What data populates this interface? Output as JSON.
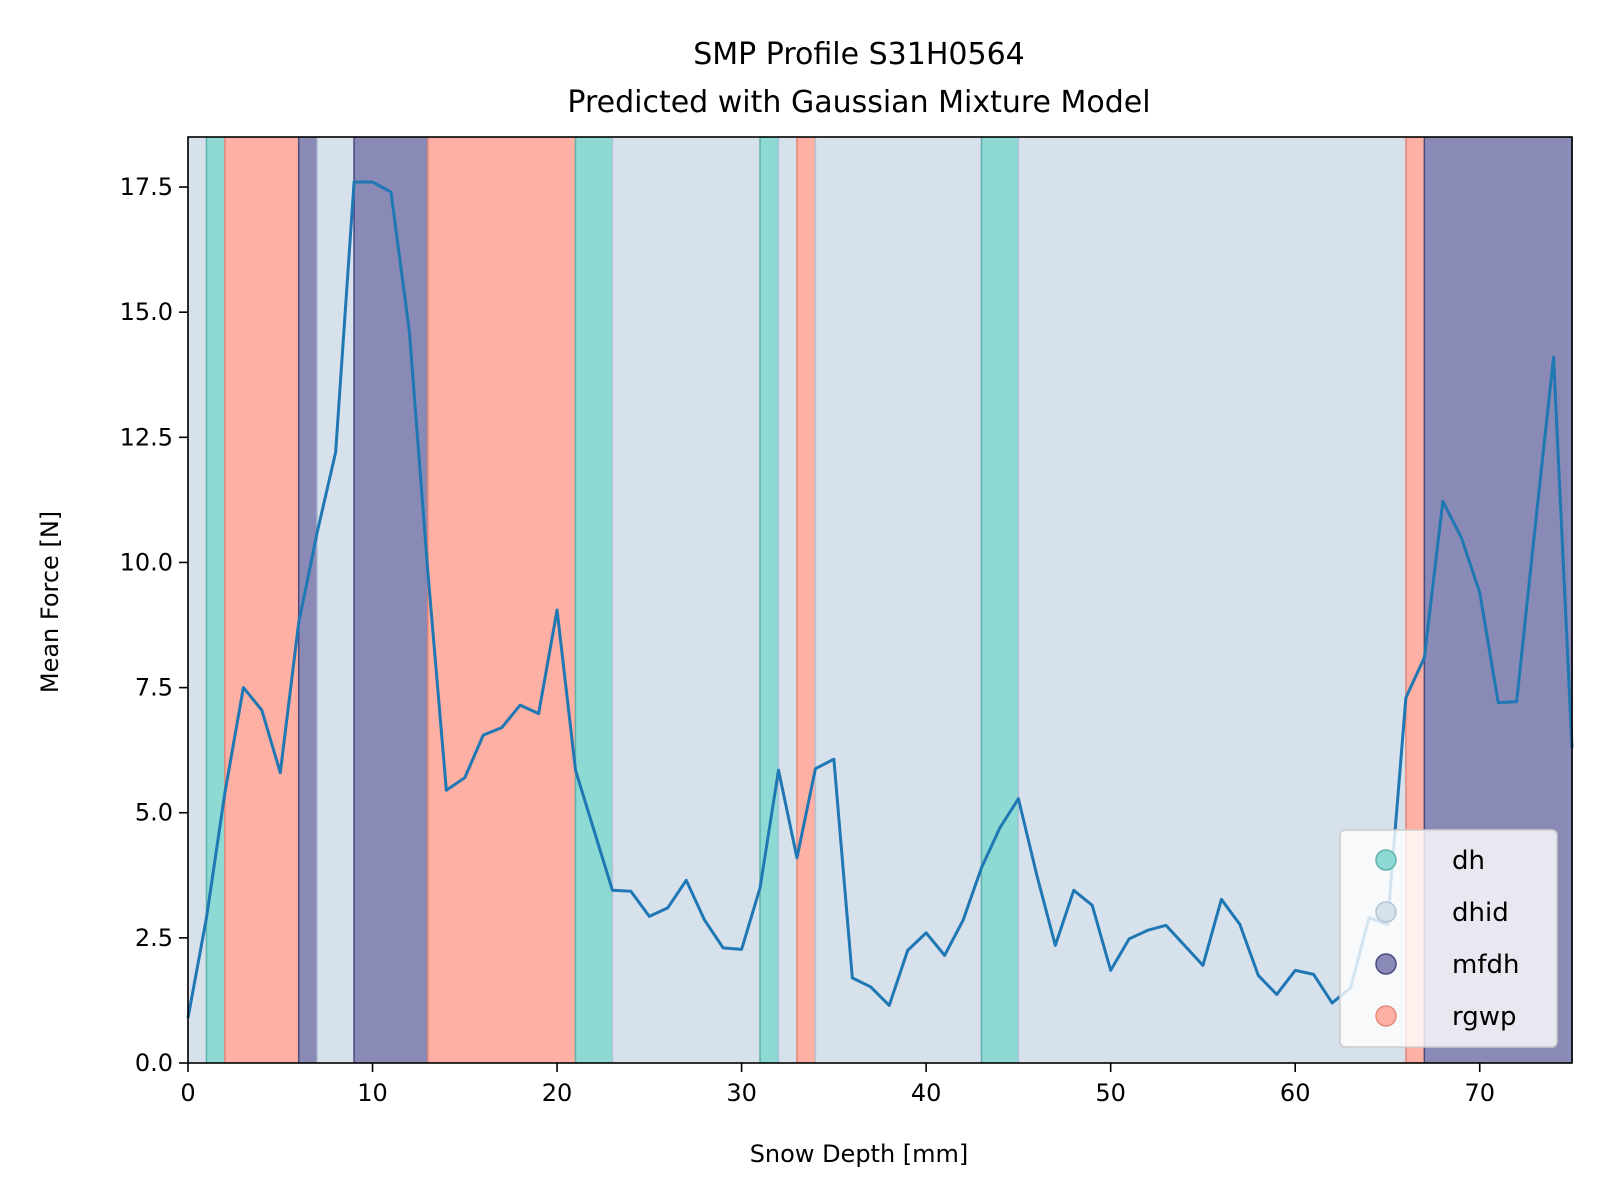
{
  "chart_data": {
    "type": "line",
    "title": "SMP Profile S31H0564",
    "subtitle": "Predicted with Gaussian Mixture Model",
    "xlabel": "Snow Depth [mm]",
    "ylabel": "Mean Force [N]",
    "xlim": [
      0,
      75
    ],
    "ylim": [
      0,
      18.5
    ],
    "xticks": [
      "0",
      "10",
      "20",
      "30",
      "40",
      "50",
      "60",
      "70"
    ],
    "yticks": [
      "0.0",
      "2.5",
      "5.0",
      "7.5",
      "10.0",
      "12.5",
      "15.0",
      "17.5"
    ],
    "grid": false,
    "legend_position": "bottom-right",
    "classes": [
      {
        "name": "dh",
        "color": "#8dd9d3",
        "edge": "#5fb3ad"
      },
      {
        "name": "dhid",
        "color": "#d7e1ec",
        "edge": "#b4c4d8"
      },
      {
        "name": "mfdh",
        "color": "#8a8ab6",
        "edge": "#4a4a80"
      },
      {
        "name": "rgwp",
        "color": "#fdb0a3",
        "edge": "#e88a7c"
      }
    ],
    "segments": [
      {
        "class": "dhid",
        "x0": 0,
        "x1": 1
      },
      {
        "class": "dh",
        "x0": 1,
        "x1": 2
      },
      {
        "class": "rgwp",
        "x0": 2,
        "x1": 6
      },
      {
        "class": "mfdh",
        "x0": 6,
        "x1": 7
      },
      {
        "class": "dhid",
        "x0": 7,
        "x1": 9
      },
      {
        "class": "mfdh",
        "x0": 9,
        "x1": 13
      },
      {
        "class": "rgwp",
        "x0": 13,
        "x1": 21
      },
      {
        "class": "dh",
        "x0": 21,
        "x1": 23
      },
      {
        "class": "dhid",
        "x0": 23,
        "x1": 31
      },
      {
        "class": "dh",
        "x0": 31,
        "x1": 32
      },
      {
        "class": "dhid",
        "x0": 32,
        "x1": 33
      },
      {
        "class": "rgwp",
        "x0": 33,
        "x1": 34
      },
      {
        "class": "dhid",
        "x0": 34,
        "x1": 43
      },
      {
        "class": "dh",
        "x0": 43,
        "x1": 45
      },
      {
        "class": "dhid",
        "x0": 45,
        "x1": 66
      },
      {
        "class": "rgwp",
        "x0": 66,
        "x1": 67
      },
      {
        "class": "mfdh",
        "x0": 67,
        "x1": 75
      }
    ],
    "series": [
      {
        "color": "#1f77b4",
        "x": [
          0,
          1,
          2,
          3,
          4,
          5,
          6,
          7,
          8,
          9,
          10,
          11,
          12,
          13,
          14,
          15,
          16,
          17,
          18,
          19,
          20,
          21,
          22,
          23,
          24,
          25,
          26,
          27,
          28,
          29,
          30,
          31,
          32,
          33,
          34,
          35,
          36,
          37,
          38,
          39,
          40,
          41,
          42,
          43,
          44,
          45,
          46,
          47,
          48,
          49,
          50,
          51,
          52,
          53,
          54,
          55,
          56,
          57,
          58,
          59,
          60,
          61,
          62,
          63,
          64,
          65,
          66,
          67,
          68,
          69,
          70,
          71,
          72,
          73,
          74,
          75
        ],
        "y": [
          0.9,
          2.9,
          5.4,
          7.5,
          7.05,
          5.8,
          8.8,
          10.6,
          12.2,
          17.6,
          17.6,
          17.4,
          14.6,
          9.8,
          5.45,
          5.7,
          6.55,
          6.7,
          7.15,
          6.98,
          9.05,
          5.85,
          4.65,
          3.45,
          3.43,
          2.93,
          3.1,
          3.65,
          2.85,
          2.3,
          2.27,
          3.5,
          5.85,
          4.1,
          5.88,
          6.07,
          1.7,
          1.52,
          1.15,
          2.25,
          2.6,
          2.15,
          2.85,
          3.9,
          4.7,
          5.28,
          3.75,
          2.35,
          3.45,
          3.15,
          1.85,
          2.48,
          2.65,
          2.75,
          2.35,
          1.95,
          3.27,
          2.77,
          1.75,
          1.37,
          1.85,
          1.77,
          1.2,
          1.5,
          2.9,
          2.77,
          7.3,
          8.1,
          11.22,
          10.5,
          9.4,
          7.2,
          7.22,
          10.7,
          14.1,
          6.3
        ]
      }
    ]
  }
}
